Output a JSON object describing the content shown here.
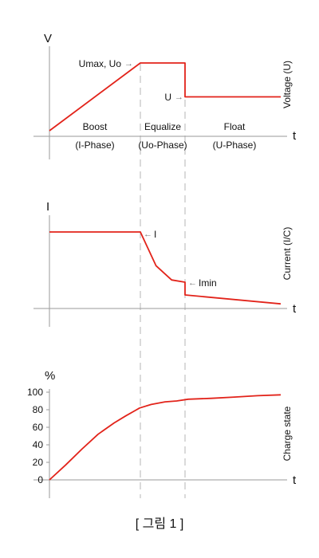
{
  "figure": {
    "caption": "[ 그림 1 ]",
    "accent_color": "#e2231a",
    "axis_color": "#9a9a9a",
    "dashed_line_color": "#b5b5b5"
  },
  "phases": [
    {
      "name": "Boost",
      "sub": "(I-Phase)"
    },
    {
      "name": "Equalize",
      "sub": "(Uo-Phase)"
    },
    {
      "name": "Float",
      "sub": "(U-Phase)"
    }
  ],
  "chart_data": [
    {
      "type": "line",
      "ylabel": "V",
      "xlabel": "t",
      "right_label": "Voltage (U)",
      "annotations": {
        "umax": "Umax, Uo",
        "u": "U"
      },
      "arrow": "→",
      "series": [
        {
          "x": [
            "start",
            "Boost end",
            "Equalize end",
            "Equalize end",
            "end"
          ],
          "values": [
            0.0,
            1.0,
            1.0,
            0.5,
            0.5
          ]
        }
      ]
    },
    {
      "type": "line",
      "ylabel": "I",
      "xlabel": "t",
      "right_label": "Current (I/C)",
      "annotations": {
        "i": "I",
        "imin": "Imin"
      },
      "arrow": "←",
      "series": [
        {
          "x": [
            "start",
            "Boost end",
            "Equalize 35%",
            "Equalize 70%",
            "Equalize end",
            "Equalize end",
            "end"
          ],
          "values": [
            1.0,
            1.0,
            0.55,
            0.36,
            0.33,
            0.16,
            0.04
          ]
        }
      ]
    },
    {
      "type": "line",
      "ylabel": "%",
      "xlabel": "t",
      "right_label": "Charge state",
      "yticks": [
        "100",
        "80",
        "60",
        "40",
        "20",
        "0"
      ],
      "ylim": [
        0,
        100
      ],
      "series": [
        {
          "x_fraction": [
            0.0,
            0.07,
            0.14,
            0.21,
            0.28,
            0.33,
            0.37,
            0.39,
            0.44,
            0.5,
            0.55,
            0.6,
            0.7,
            0.8,
            0.9,
            1.0
          ],
          "values": [
            0,
            17,
            35,
            52,
            65,
            73,
            79,
            82,
            86,
            89,
            90,
            92,
            93,
            94.5,
            96,
            97
          ]
        }
      ]
    }
  ]
}
